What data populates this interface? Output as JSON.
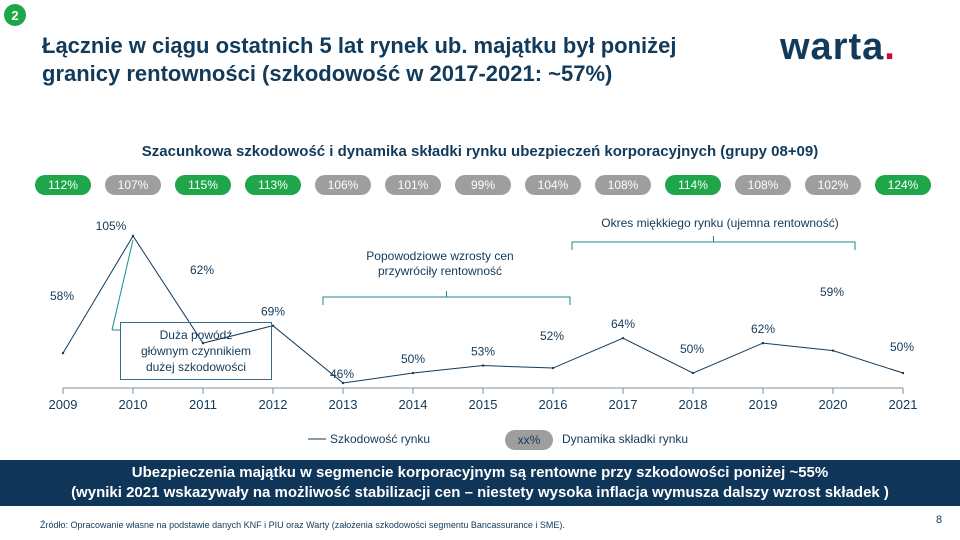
{
  "slide_number": "2",
  "title": "Łącznie w ciągu ostatnich 5 lat rynek ub. majątku był poniżej granicy rentowności (szkodowość w 2017-2021: ~57%)",
  "logo": {
    "text": "warta",
    "dot": "."
  },
  "chart_data": {
    "type": "line",
    "title": "Szacunkowa szkodowość i dynamika składki rynku ubezpieczeń korporacyjnych (grupy 08+09)",
    "x": [
      "2009",
      "2010",
      "2011",
      "2012",
      "2013",
      "2014",
      "2015",
      "2016",
      "2017",
      "2018",
      "2019",
      "2020",
      "2021"
    ],
    "series": [
      {
        "name": "Szkodowość rynku",
        "values": [
          58,
          105,
          62,
          69,
          46,
          50,
          53,
          52,
          64,
          50,
          62,
          59,
          50
        ],
        "labels": [
          "58%",
          "105%",
          "62%",
          "69%",
          "46%",
          "50%",
          "53%",
          "52%",
          "64%",
          "50%",
          "62%",
          "59%",
          "50%"
        ]
      }
    ],
    "premium_dynamics": {
      "name": "Dynamika składki rynku",
      "values": [
        112,
        107,
        115,
        113,
        106,
        101,
        99,
        104,
        108,
        114,
        108,
        102,
        124
      ],
      "labels": [
        "112%",
        "107%",
        "115%",
        "113%",
        "106%",
        "101%",
        "99%",
        "104%",
        "108%",
        "114%",
        "108%",
        "102%",
        "124%"
      ],
      "status": [
        "green",
        "grey",
        "green",
        "green",
        "grey",
        "grey",
        "grey",
        "grey",
        "grey",
        "green",
        "grey",
        "grey",
        "green"
      ]
    },
    "legend": {
      "line_label": "Szkodowość rynku",
      "pill_sample": "xx%",
      "pill_label": "Dynamika składki rynku"
    }
  },
  "annotations": {
    "flood_box": [
      "Duża powódź",
      "głównym czynnikiem",
      "dużej szkodowości"
    ],
    "post_flood": [
      "Popowodziowe wzrosty cen",
      "przywróciły rentowność"
    ],
    "soft_market": "Okres miękkiego rynku (ujemna rentowność)"
  },
  "banner": {
    "line1": "Ubezpieczenia majątku w segmencie korporacyjnym są rentowne przy szkodowości poniżej ~55%",
    "line2": "(wyniki 2021 wskazywały na możliwość stabilizacji cen – niestety wysoka inflacja wymusza dalszy wzrost składek )"
  },
  "source": "Źródło: Opracowanie własne na podstawie danych KNF i PIU oraz Warty (założenia szkodowości segmentu Bancassurance i SME).",
  "page_number": "8",
  "colors": {
    "navy": "#123a5a",
    "green": "#1fa64a",
    "grey": "#9e9e9e",
    "brand_red": "#c8102e",
    "banner": "#0f3559"
  }
}
